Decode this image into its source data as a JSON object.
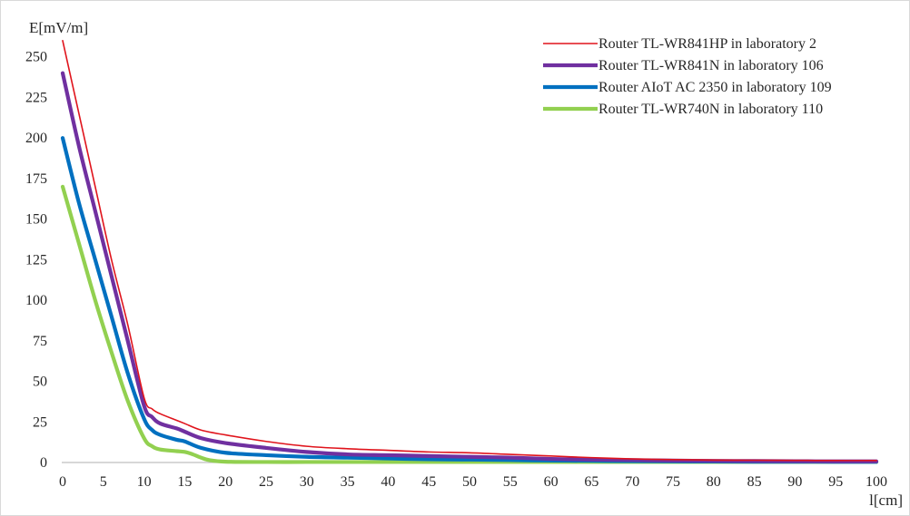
{
  "chart_data": {
    "type": "line",
    "title": "",
    "ylabel": "E[mV/m]",
    "xlabel": "l[cm]",
    "xlim": [
      0,
      100
    ],
    "ylim": [
      0,
      275
    ],
    "x_ticks": [
      0,
      5,
      10,
      15,
      20,
      25,
      30,
      35,
      40,
      45,
      50,
      55,
      60,
      65,
      70,
      75,
      80,
      85,
      90,
      95,
      100
    ],
    "y_ticks": [
      0,
      25,
      50,
      75,
      100,
      125,
      150,
      175,
      200,
      225,
      250
    ],
    "grid": false,
    "legend_position": "top-right",
    "series": [
      {
        "name": "Router TL-WR841HP in laboratory 2",
        "color": "#e0141c",
        "line_style": "thin",
        "points": [
          [
            0,
            260
          ],
          [
            2,
            215
          ],
          [
            4,
            170
          ],
          [
            6,
            125
          ],
          [
            8,
            85
          ],
          [
            10,
            40
          ],
          [
            11,
            33
          ],
          [
            12,
            30
          ],
          [
            14,
            26
          ],
          [
            15,
            24
          ],
          [
            17,
            20
          ],
          [
            20,
            17
          ],
          [
            25,
            13
          ],
          [
            30,
            10
          ],
          [
            35,
            8.5
          ],
          [
            40,
            7.5
          ],
          [
            45,
            6.5
          ],
          [
            50,
            6
          ],
          [
            55,
            5
          ],
          [
            60,
            4
          ],
          [
            65,
            3
          ],
          [
            70,
            2.2
          ],
          [
            75,
            1.8
          ],
          [
            80,
            1.5
          ],
          [
            85,
            1.4
          ],
          [
            90,
            1.3
          ],
          [
            95,
            1.2
          ],
          [
            100,
            1.2
          ]
        ]
      },
      {
        "name": "Router TL-WR841N in laboratory 106",
        "color": "#7030a0",
        "line_style": "thick",
        "points": [
          [
            0,
            240
          ],
          [
            2,
            195
          ],
          [
            4,
            155
          ],
          [
            6,
            115
          ],
          [
            8,
            75
          ],
          [
            10,
            35
          ],
          [
            11,
            28
          ],
          [
            12,
            24
          ],
          [
            14,
            21
          ],
          [
            15,
            19
          ],
          [
            17,
            15
          ],
          [
            20,
            12
          ],
          [
            25,
            9
          ],
          [
            30,
            6.5
          ],
          [
            35,
            5
          ],
          [
            40,
            4.5
          ],
          [
            45,
            4
          ],
          [
            50,
            3.5
          ],
          [
            55,
            3
          ],
          [
            60,
            2.2
          ],
          [
            65,
            1.8
          ],
          [
            70,
            1.5
          ],
          [
            75,
            1.2
          ],
          [
            80,
            1
          ],
          [
            85,
            0.9
          ],
          [
            90,
            0.8
          ],
          [
            95,
            0.7
          ],
          [
            100,
            0.7
          ]
        ]
      },
      {
        "name": "Router AIoT AC 2350 in laboratory 109",
        "color": "#0070c0",
        "line_style": "thick",
        "points": [
          [
            0,
            200
          ],
          [
            2,
            160
          ],
          [
            4,
            125
          ],
          [
            6,
            90
          ],
          [
            8,
            55
          ],
          [
            10,
            27
          ],
          [
            11,
            20
          ],
          [
            12,
            17
          ],
          [
            14,
            14
          ],
          [
            15,
            13
          ],
          [
            17,
            9
          ],
          [
            20,
            6
          ],
          [
            25,
            4.5
          ],
          [
            30,
            3.5
          ],
          [
            35,
            3
          ],
          [
            40,
            2.5
          ],
          [
            45,
            2
          ],
          [
            50,
            1.8
          ],
          [
            55,
            1.5
          ],
          [
            60,
            1.2
          ],
          [
            65,
            1
          ],
          [
            70,
            0.8
          ],
          [
            75,
            0.7
          ],
          [
            80,
            0.6
          ],
          [
            85,
            0.5
          ],
          [
            90,
            0.5
          ],
          [
            95,
            0.4
          ],
          [
            100,
            0.4
          ]
        ]
      },
      {
        "name": "Router TL-WR740N in laboratory 110",
        "color": "#92d050",
        "line_style": "thick",
        "points": [
          [
            0,
            170
          ],
          [
            2,
            135
          ],
          [
            4,
            100
          ],
          [
            6,
            68
          ],
          [
            8,
            38
          ],
          [
            10,
            15
          ],
          [
            11,
            10
          ],
          [
            12,
            8
          ],
          [
            14,
            7
          ],
          [
            15,
            6.5
          ],
          [
            16,
            5
          ],
          [
            17,
            3
          ],
          [
            18,
            1.5
          ],
          [
            20,
            0.5
          ],
          [
            25,
            0.3
          ],
          [
            30,
            0.3
          ],
          [
            35,
            0.3
          ],
          [
            40,
            0.3
          ],
          [
            45,
            0.3
          ],
          [
            50,
            0.3
          ],
          [
            55,
            0.3
          ],
          [
            60,
            0.3
          ],
          [
            65,
            0.3
          ],
          [
            70,
            0.3
          ],
          [
            75,
            0.3
          ],
          [
            80,
            0.3
          ],
          [
            85,
            0.3
          ],
          [
            90,
            0.3
          ],
          [
            95,
            0.3
          ],
          [
            100,
            0.3
          ]
        ]
      }
    ]
  }
}
